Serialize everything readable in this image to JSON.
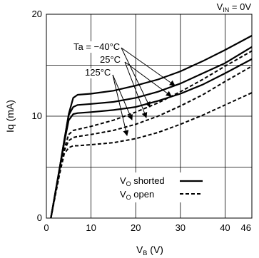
{
  "chart_data": {
    "type": "line",
    "condition": {
      "main": "V",
      "sub": "IN",
      "value": " = 0V"
    },
    "xlabel": {
      "main": "V",
      "sub": "B",
      "unit": " (V)"
    },
    "ylabel": "Iq (mA)",
    "xlim": [
      0,
      46
    ],
    "ylim": [
      0,
      20
    ],
    "x_ticks": [
      "0",
      "10",
      "20",
      "30",
      "40",
      "46"
    ],
    "y_ticks": [
      "0",
      "10",
      "20"
    ],
    "grid": true,
    "legend_position": "bottom-right",
    "legend": [
      {
        "main": "V",
        "sub": "O",
        "text": " shorted",
        "style": "solid"
      },
      {
        "main": "V",
        "sub": "O",
        "text": " open",
        "style": "dashed"
      }
    ],
    "temperature_labels": [
      "Ta = −40°C",
      "25°C",
      "125°C"
    ],
    "series": [
      {
        "temp": "−40°C",
        "style": "solid",
        "points": [
          [
            1,
            0
          ],
          [
            2,
            2.5
          ],
          [
            3,
            5
          ],
          [
            4,
            7.6
          ],
          [
            5,
            10.2
          ],
          [
            6,
            11.8
          ],
          [
            7,
            12.1
          ],
          [
            10,
            12.2
          ],
          [
            15,
            12.5
          ],
          [
            20,
            13
          ],
          [
            25,
            13.6
          ],
          [
            30,
            14.4
          ],
          [
            35,
            15.4
          ],
          [
            40,
            16.5
          ],
          [
            46,
            17.9
          ]
        ]
      },
      {
        "temp": "25°C",
        "style": "solid",
        "points": [
          [
            1,
            0
          ],
          [
            2,
            2.5
          ],
          [
            3,
            5
          ],
          [
            4,
            7.6
          ],
          [
            5,
            10.1
          ],
          [
            6,
            10.9
          ],
          [
            7,
            11.1
          ],
          [
            10,
            11.2
          ],
          [
            15,
            11.4
          ],
          [
            20,
            11.8
          ],
          [
            25,
            12.4
          ],
          [
            30,
            13.2
          ],
          [
            35,
            14.2
          ],
          [
            40,
            15.2
          ],
          [
            46,
            16.8
          ]
        ]
      },
      {
        "temp": "125°C",
        "style": "solid",
        "points": [
          [
            1,
            0
          ],
          [
            2,
            2.4
          ],
          [
            3,
            4.9
          ],
          [
            4,
            7.4
          ],
          [
            5,
            9.6
          ],
          [
            6,
            10.2
          ],
          [
            7,
            10.3
          ],
          [
            10,
            10.4
          ],
          [
            15,
            10.6
          ],
          [
            20,
            10.9
          ],
          [
            25,
            11.5
          ],
          [
            30,
            12.2
          ],
          [
            35,
            13.1
          ],
          [
            40,
            14.2
          ],
          [
            46,
            15.6
          ]
        ]
      },
      {
        "temp": "−40°C",
        "style": "dashed",
        "points": [
          [
            1,
            0
          ],
          [
            2,
            2.3
          ],
          [
            3,
            4.6
          ],
          [
            4,
            6.8
          ],
          [
            5,
            8.2
          ],
          [
            6,
            8.6
          ],
          [
            7,
            8.7
          ],
          [
            10,
            9
          ],
          [
            15,
            9.6
          ],
          [
            20,
            10.4
          ],
          [
            25,
            11.3
          ],
          [
            30,
            12.4
          ],
          [
            35,
            13.6
          ],
          [
            40,
            14.9
          ],
          [
            46,
            16.4
          ]
        ]
      },
      {
        "temp": "25°C",
        "style": "dashed",
        "points": [
          [
            1,
            0
          ],
          [
            2,
            2.3
          ],
          [
            3,
            4.6
          ],
          [
            4,
            6.6
          ],
          [
            5,
            7.6
          ],
          [
            6,
            7.9
          ],
          [
            7,
            8
          ],
          [
            10,
            8.2
          ],
          [
            15,
            8.6
          ],
          [
            20,
            9.2
          ],
          [
            25,
            10
          ],
          [
            30,
            11
          ],
          [
            35,
            12.1
          ],
          [
            40,
            13.4
          ],
          [
            46,
            14.9
          ]
        ]
      },
      {
        "temp": "125°C",
        "style": "dashed",
        "points": [
          [
            1,
            0
          ],
          [
            2,
            2.2
          ],
          [
            3,
            4.4
          ],
          [
            4,
            6.3
          ],
          [
            5,
            6.9
          ],
          [
            6,
            7.1
          ],
          [
            7,
            7.1
          ],
          [
            10,
            7.2
          ],
          [
            15,
            7.4
          ],
          [
            20,
            7.8
          ],
          [
            25,
            8.4
          ],
          [
            30,
            9.2
          ],
          [
            35,
            10.1
          ],
          [
            40,
            11.1
          ],
          [
            46,
            12.3
          ]
        ]
      }
    ]
  }
}
